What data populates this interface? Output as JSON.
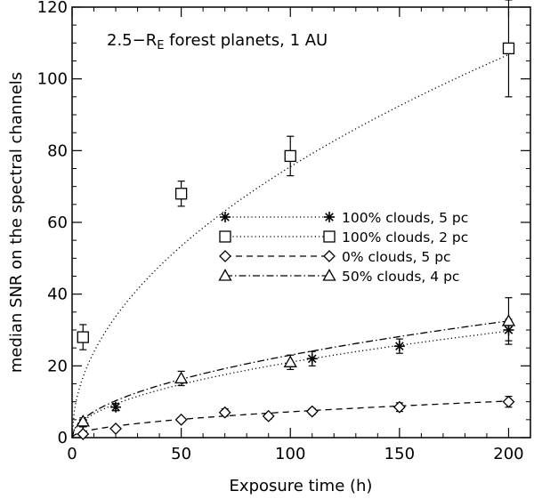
{
  "chart_data": {
    "type": "scatter",
    "annotation": {
      "prefix": "2.5−R",
      "subscript": "E",
      "suffix": " forest planets, 1 AU"
    },
    "xlabel": "Exposure time (h)",
    "ylabel": "median SNR on the spectral channels",
    "xlim": [
      0,
      210
    ],
    "ylim": [
      0,
      120
    ],
    "xticks": [
      0,
      50,
      100,
      150,
      200
    ],
    "yticks": [
      0,
      20,
      40,
      60,
      80,
      100,
      120
    ],
    "grid": false,
    "legend_position": "center-right",
    "series": [
      {
        "name": "100% clouds, 5 pc",
        "marker": "asterisk",
        "line": "dotted",
        "points": [
          {
            "x": 5,
            "y": 4,
            "err": 1
          },
          {
            "x": 20,
            "y": 8.5,
            "err": 1
          },
          {
            "x": 110,
            "y": 22,
            "err": 2
          },
          {
            "x": 150,
            "y": 25.5,
            "err": 2
          },
          {
            "x": 200,
            "y": 30,
            "err": 3
          }
        ],
        "fit_curve": {
          "a": 2.1,
          "p": 0.5
        }
      },
      {
        "name": "100% clouds, 2 pc",
        "marker": "square",
        "line": "dotted",
        "points": [
          {
            "x": 5,
            "y": 28,
            "err": 3.5
          },
          {
            "x": 50,
            "y": 68,
            "err": 3.5
          },
          {
            "x": 100,
            "y": 78.5,
            "err": 5.5
          },
          {
            "x": 200,
            "y": 108.5,
            "err": 13.5
          }
        ],
        "fit_curve": {
          "a": 7.55,
          "p": 0.5
        }
      },
      {
        "name": "0% clouds, 5 pc",
        "marker": "diamond",
        "line": "dashed",
        "points": [
          {
            "x": 5,
            "y": 1,
            "err": 0.5
          },
          {
            "x": 20,
            "y": 2.5,
            "err": 0.5
          },
          {
            "x": 50,
            "y": 5,
            "err": 0.5
          },
          {
            "x": 70,
            "y": 7,
            "err": 1
          },
          {
            "x": 90,
            "y": 6,
            "err": 0.8
          },
          {
            "x": 110,
            "y": 7.3,
            "err": 0.8
          },
          {
            "x": 150,
            "y": 8.5,
            "err": 1.2
          },
          {
            "x": 200,
            "y": 10,
            "err": 1.5
          }
        ],
        "fit_curve": {
          "a": 0.72,
          "p": 0.5
        }
      },
      {
        "name": "50% clouds, 4 pc",
        "marker": "triangle",
        "line": "dashdot",
        "points": [
          {
            "x": 5,
            "y": 4.5,
            "err": 1
          },
          {
            "x": 50,
            "y": 16.5,
            "err": 2
          },
          {
            "x": 100,
            "y": 21,
            "err": 2
          },
          {
            "x": 200,
            "y": 32.5,
            "err": 6.5
          }
        ],
        "fit_curve": {
          "a": 2.3,
          "p": 0.5
        }
      }
    ]
  }
}
